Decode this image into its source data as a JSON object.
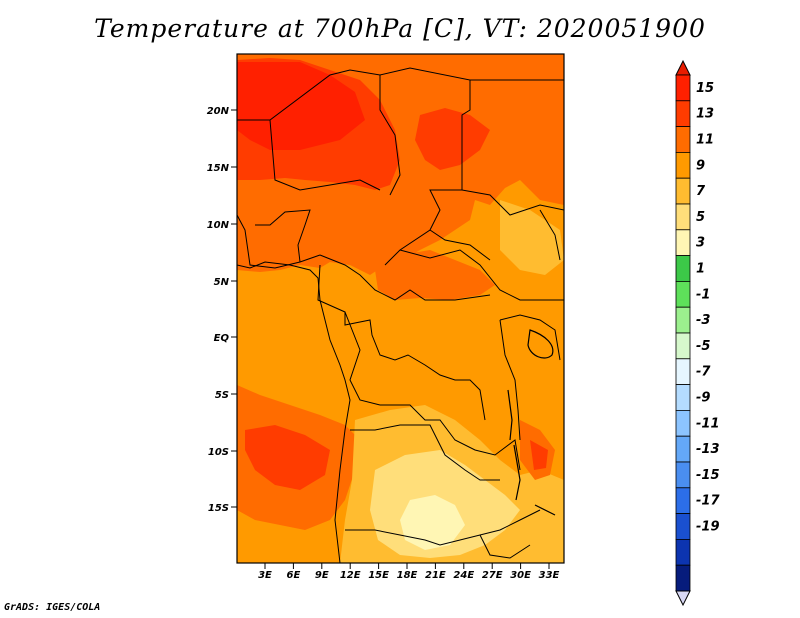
{
  "title": "Temperature at 700hPa [C], VT: 2020051900",
  "credit": "GrADS: IGES/COLA",
  "map": {
    "lat_ticks": [
      "20N",
      "15N",
      "10N",
      "5N",
      "EQ",
      "5S",
      "10S",
      "15S"
    ],
    "lon_ticks": [
      "3E",
      "6E",
      "9E",
      "12E",
      "15E",
      "18E",
      "21E",
      "24E",
      "27E",
      "30E",
      "33E"
    ]
  },
  "colorbar": {
    "levels": [
      {
        "label": "15",
        "color": "#ff2000"
      },
      {
        "label": "13",
        "color": "#ff3c00"
      },
      {
        "label": "11",
        "color": "#ff6c00"
      },
      {
        "label": "9",
        "color": "#ff9a00"
      },
      {
        "label": "7",
        "color": "#ffbc30"
      },
      {
        "label": "5",
        "color": "#ffde7a"
      },
      {
        "label": "3",
        "color": "#fff6b4"
      },
      {
        "label": "1",
        "color": "#3cc848"
      },
      {
        "label": "-1",
        "color": "#5ee05a"
      },
      {
        "label": "-3",
        "color": "#9cf08e"
      },
      {
        "label": "-5",
        "color": "#d6f8cc"
      },
      {
        "label": "-7",
        "color": "#e6f6ff"
      },
      {
        "label": "-9",
        "color": "#b4dcff"
      },
      {
        "label": "-11",
        "color": "#8cc4ff"
      },
      {
        "label": "-13",
        "color": "#64a8f8"
      },
      {
        "label": "-15",
        "color": "#4a8ef0"
      },
      {
        "label": "-17",
        "color": "#2c6ee8"
      },
      {
        "label": "-19",
        "color": "#1a50d0"
      }
    ],
    "top_color": "#e81c00",
    "extra_colors": [
      "#0c34b0",
      "#061c7c"
    ],
    "bottom_color": "#d8d8f4"
  }
}
